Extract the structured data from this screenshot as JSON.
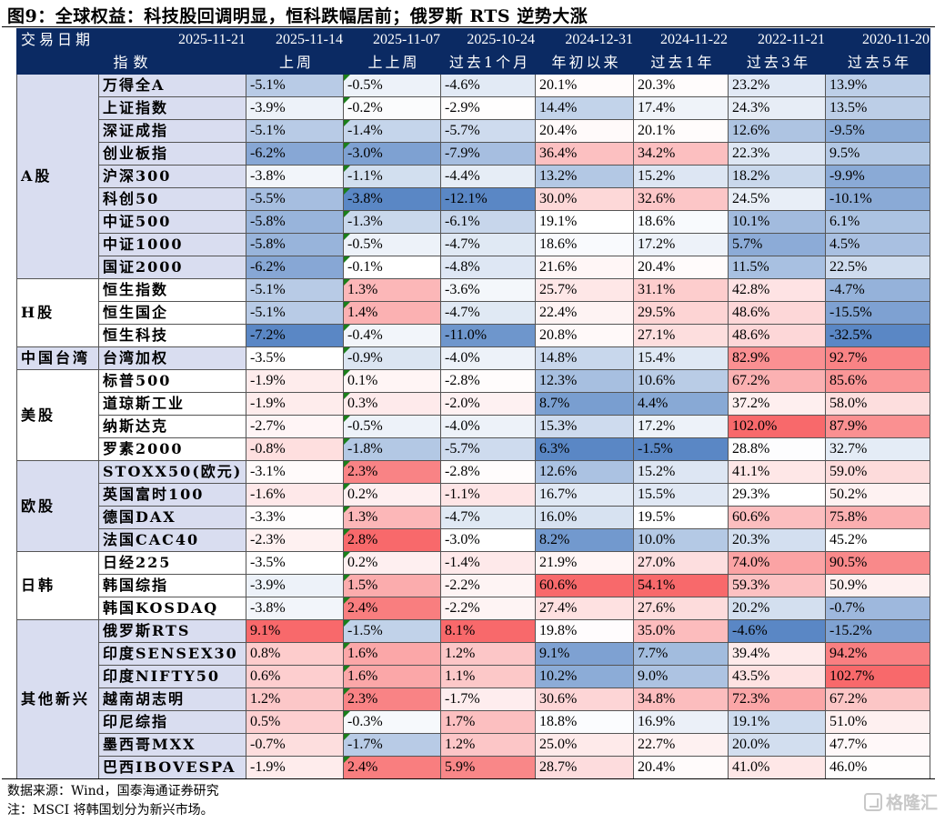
{
  "title": "图9：全球权益：科技股回调明显，恒科跌幅居前；俄罗斯 RTS 逆势大涨",
  "header": {
    "date_label": "交易日期",
    "index_label": "指数",
    "dates": [
      "2025-11-21",
      "2025-11-14",
      "2025-11-07",
      "2025-10-24",
      "2024-12-31",
      "2024-11-22",
      "2022-11-21",
      "2020-11-20"
    ],
    "periods": [
      "上周",
      "上上周",
      "过去1个月",
      "年初以来",
      "过去1年",
      "过去3年",
      "过去5年"
    ]
  },
  "groups": [
    {
      "name": "A股",
      "shaded": true,
      "rows": [
        {
          "index": "万得全A",
          "values": [
            "-5.1%",
            "-0.5%",
            "-4.6%",
            "20.1%",
            "20.3%",
            "23.2%",
            "13.9%"
          ]
        },
        {
          "index": "上证指数",
          "values": [
            "-3.9%",
            "-0.2%",
            "-2.9%",
            "14.4%",
            "17.4%",
            "24.3%",
            "13.5%"
          ]
        },
        {
          "index": "深证成指",
          "values": [
            "-5.1%",
            "-1.4%",
            "-5.7%",
            "20.4%",
            "20.1%",
            "12.6%",
            "-9.5%"
          ]
        },
        {
          "index": "创业板指",
          "values": [
            "-6.2%",
            "-3.0%",
            "-7.9%",
            "36.4%",
            "34.2%",
            "22.3%",
            "9.5%"
          ]
        },
        {
          "index": "沪深300",
          "values": [
            "-3.8%",
            "-1.1%",
            "-4.4%",
            "13.2%",
            "15.2%",
            "18.2%",
            "-9.9%"
          ]
        },
        {
          "index": "科创50",
          "values": [
            "-5.5%",
            "-3.8%",
            "-12.1%",
            "30.0%",
            "32.6%",
            "24.5%",
            "-10.1%"
          ]
        },
        {
          "index": "中证500",
          "values": [
            "-5.8%",
            "-1.3%",
            "-6.1%",
            "19.1%",
            "18.6%",
            "10.1%",
            "6.1%"
          ]
        },
        {
          "index": "中证1000",
          "values": [
            "-5.8%",
            "-0.5%",
            "-4.7%",
            "18.6%",
            "17.2%",
            "5.7%",
            "4.5%"
          ]
        },
        {
          "index": "国证2000",
          "values": [
            "-6.2%",
            "-0.1%",
            "-4.8%",
            "21.6%",
            "20.4%",
            "11.5%",
            "22.5%"
          ]
        }
      ]
    },
    {
      "name": "H股",
      "shaded": false,
      "rows": [
        {
          "index": "恒生指数",
          "values": [
            "-5.1%",
            "1.3%",
            "-3.6%",
            "25.7%",
            "31.1%",
            "42.8%",
            "-4.7%"
          ]
        },
        {
          "index": "恒生国企",
          "values": [
            "-5.1%",
            "1.4%",
            "-4.7%",
            "22.4%",
            "29.5%",
            "48.6%",
            "-15.5%"
          ]
        },
        {
          "index": "恒生科技",
          "values": [
            "-7.2%",
            "-0.4%",
            "-11.0%",
            "20.8%",
            "27.1%",
            "48.6%",
            "-32.5%"
          ]
        }
      ]
    },
    {
      "name": "中国台湾",
      "shaded": true,
      "rows": [
        {
          "index": "台湾加权",
          "values": [
            "-3.5%",
            "-0.9%",
            "-4.0%",
            "14.8%",
            "15.4%",
            "82.9%",
            "92.7%"
          ]
        }
      ]
    },
    {
      "name": "美股",
      "shaded": false,
      "rows": [
        {
          "index": "标普500",
          "values": [
            "-1.9%",
            "0.1%",
            "-2.8%",
            "12.3%",
            "10.6%",
            "67.2%",
            "85.6%"
          ]
        },
        {
          "index": "道琼斯工业",
          "values": [
            "-1.9%",
            "0.3%",
            "-2.0%",
            "8.7%",
            "4.4%",
            "37.2%",
            "58.0%"
          ]
        },
        {
          "index": "纳斯达克",
          "values": [
            "-2.7%",
            "-0.5%",
            "-4.0%",
            "15.3%",
            "17.2%",
            "102.0%",
            "87.9%"
          ]
        },
        {
          "index": "罗素2000",
          "values": [
            "-0.8%",
            "-1.8%",
            "-5.7%",
            "6.3%",
            "-1.5%",
            "28.8%",
            "32.7%"
          ]
        }
      ]
    },
    {
      "name": "欧股",
      "shaded": true,
      "rows": [
        {
          "index": "STOXX50(欧元)",
          "values": [
            "-3.1%",
            "2.3%",
            "-2.8%",
            "12.6%",
            "15.2%",
            "41.1%",
            "59.0%"
          ]
        },
        {
          "index": "英国富时100",
          "values": [
            "-1.6%",
            "0.2%",
            "-1.1%",
            "16.7%",
            "15.5%",
            "29.3%",
            "50.2%"
          ]
        },
        {
          "index": "德国DAX",
          "values": [
            "-3.3%",
            "1.3%",
            "-4.7%",
            "16.0%",
            "19.5%",
            "60.6%",
            "75.8%"
          ]
        },
        {
          "index": "法国CAC40",
          "values": [
            "-2.3%",
            "2.8%",
            "-3.0%",
            "8.2%",
            "10.0%",
            "20.3%",
            "45.2%"
          ]
        }
      ]
    },
    {
      "name": "日韩",
      "shaded": false,
      "rows": [
        {
          "index": "日经225",
          "values": [
            "-3.5%",
            "0.2%",
            "-1.4%",
            "21.9%",
            "27.0%",
            "74.0%",
            "90.5%"
          ]
        },
        {
          "index": "韩国综指",
          "values": [
            "-3.9%",
            "1.5%",
            "-2.2%",
            "60.6%",
            "54.1%",
            "59.3%",
            "50.9%"
          ]
        },
        {
          "index": "韩国KOSDAQ",
          "values": [
            "-3.8%",
            "2.4%",
            "-2.2%",
            "27.4%",
            "27.6%",
            "20.2%",
            "-0.7%"
          ]
        }
      ]
    },
    {
      "name": "其他新兴",
      "shaded": true,
      "rows": [
        {
          "index": "俄罗斯RTS",
          "values": [
            "9.1%",
            "-1.5%",
            "8.1%",
            "19.8%",
            "35.0%",
            "-4.6%",
            "-15.2%"
          ]
        },
        {
          "index": "印度SENSEX30",
          "values": [
            "0.8%",
            "1.6%",
            "1.2%",
            "9.1%",
            "7.7%",
            "39.4%",
            "94.2%"
          ]
        },
        {
          "index": "印度NIFTY50",
          "values": [
            "0.6%",
            "1.6%",
            "1.1%",
            "10.2%",
            "9.0%",
            "43.5%",
            "102.7%"
          ]
        },
        {
          "index": "越南胡志明",
          "values": [
            "1.2%",
            "2.3%",
            "-1.7%",
            "30.6%",
            "34.8%",
            "72.3%",
            "67.2%"
          ]
        },
        {
          "index": "印尼综指",
          "values": [
            "0.5%",
            "-0.3%",
            "1.7%",
            "18.8%",
            "16.9%",
            "19.1%",
            "51.0%"
          ]
        },
        {
          "index": "墨西哥MXX",
          "values": [
            "-0.7%",
            "-1.7%",
            "1.2%",
            "25.0%",
            "22.7%",
            "20.0%",
            "47.7%"
          ]
        },
        {
          "index": "巴西IBOVESPA",
          "values": [
            "-1.9%",
            "2.4%",
            "5.9%",
            "28.7%",
            "20.4%",
            "41.0%",
            "46.0%"
          ]
        }
      ]
    }
  ],
  "flagged_column": 1,
  "colors": {
    "header_bg": "#0b2a63",
    "group_shade": "#d9ddf0",
    "scale_low": "#5a87c5",
    "scale_mid": "#ffffff",
    "scale_high": "#f8696b",
    "flag": "#1a7f1a"
  },
  "notes": [
    "数据来源：Wind，国泰海通证券研究",
    "注：MSCI 将韩国划分为新兴市场。"
  ],
  "watermark": "格隆汇"
}
